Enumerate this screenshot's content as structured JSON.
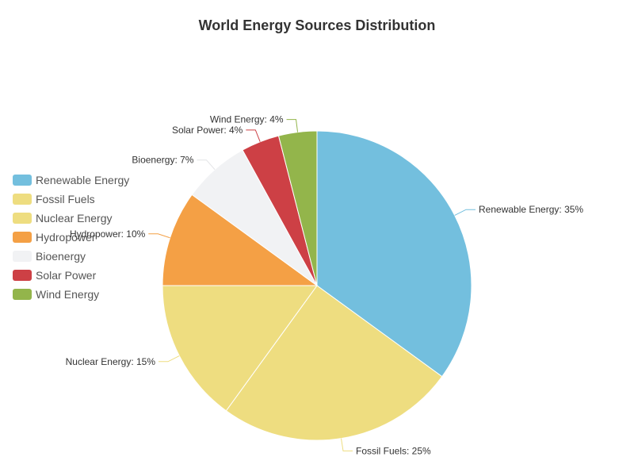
{
  "chart_data": {
    "type": "pie",
    "title": "World Energy Sources Distribution",
    "legend_position": "left",
    "slices": [
      {
        "name": "Renewable Energy",
        "value": 35,
        "label": "Renewable Energy: 35%",
        "color": "#73bfde"
      },
      {
        "name": "Fossil Fuels",
        "value": 25,
        "label": "Fossil Fuels: 25%",
        "color": "#eedd80"
      },
      {
        "name": "Nuclear Energy",
        "value": 15,
        "label": "Nuclear Energy: 15%",
        "color": "#eedd80"
      },
      {
        "name": "Hydropower",
        "value": 10,
        "label": "Hydropower: 10%",
        "color": "#f4a045"
      },
      {
        "name": "Bioenergy",
        "value": 7,
        "label": "Bioenergy: 7%",
        "color": "#f1f2f4"
      },
      {
        "name": "Solar Power",
        "value": 4,
        "label": "Solar Power: 4%",
        "color": "#cd4045"
      },
      {
        "name": "Wind Energy",
        "value": 4,
        "label": "Wind Energy: 4%",
        "color": "#93b54b"
      }
    ]
  }
}
